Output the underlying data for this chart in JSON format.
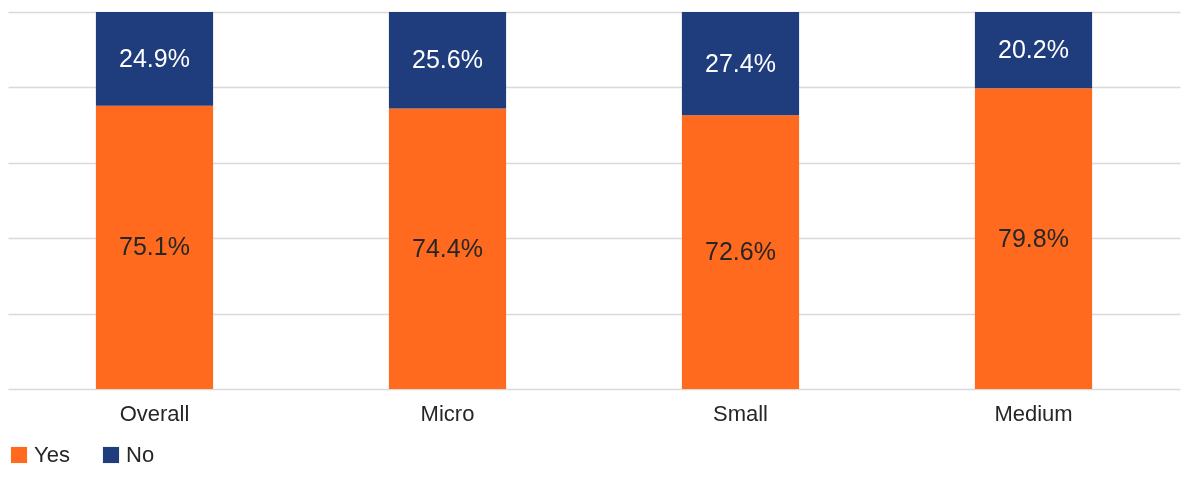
{
  "chart_data": {
    "type": "bar",
    "stacked": true,
    "categories": [
      "Overall",
      "Micro",
      "Small",
      "Medium"
    ],
    "series": [
      {
        "name": "Yes",
        "color": "#ff6a1f",
        "values": [
          75.1,
          74.4,
          72.6,
          79.8
        ],
        "value_labels": [
          "75.1%",
          "74.4%",
          "72.6%",
          "79.8%"
        ]
      },
      {
        "name": "No",
        "color": "#1f3d7c",
        "values": [
          24.9,
          25.6,
          27.4,
          20.2
        ],
        "value_labels": [
          "24.9%",
          "25.6%",
          "27.4%",
          "20.2%"
        ]
      }
    ],
    "grid": "y",
    "tick_labels": "x",
    "legend": "bottom"
  }
}
